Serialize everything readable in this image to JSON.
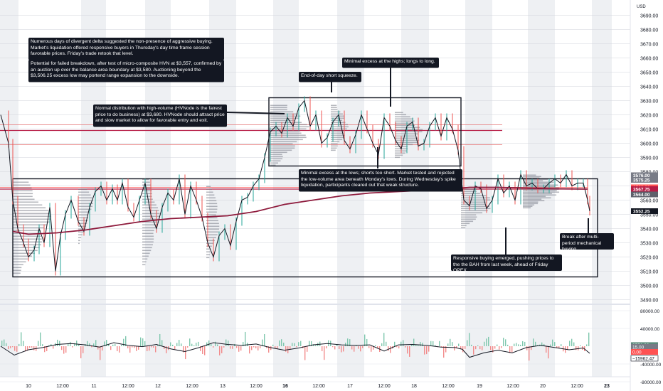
{
  "chart_data": {
    "type": "line",
    "currency_label": "USD",
    "price_axis": {
      "min": 3487,
      "max": 3700,
      "ticks": [
        3490,
        3500,
        3510,
        3520,
        3530,
        3540,
        3550,
        3560,
        3570,
        3580,
        3590,
        3600,
        3610,
        3620,
        3630,
        3640,
        3650,
        3660,
        3670,
        3680,
        3690
      ]
    },
    "date_axis": {
      "labels": [
        "10",
        "12:00",
        "11",
        "12:00",
        "12",
        "12:00",
        "13",
        "12:00",
        "16",
        "12:00",
        "17",
        "12:00",
        "18",
        "12:00",
        "19",
        "12:00",
        "20",
        "12:00",
        "23"
      ],
      "bold_labels": [
        "16",
        "23"
      ]
    },
    "price_badges": [
      {
        "value": "3576.00",
        "color": "#787b86"
      },
      {
        "value": "3575.25",
        "color": "#787b86"
      },
      {
        "value": "3569.00",
        "color": "#ff5252"
      },
      {
        "value": "3567.75",
        "color": "#b71c45"
      },
      {
        "value": "3564.00",
        "color": "#5d606b"
      },
      {
        "value": "3552.25",
        "color": "#131722"
      }
    ],
    "indicator": {
      "axis_ticks": [
        "80000.00",
        "40000.00",
        "-40000.00",
        "-80000.00"
      ],
      "badges": [
        {
          "value": "2551.00",
          "color": "#5d8a7c"
        },
        {
          "value": "15.00",
          "color": "#787b86"
        },
        {
          "value": "0.00",
          "color": "#ff5252"
        },
        {
          "value": "−15962.47",
          "color": "#ffffff"
        }
      ]
    },
    "series": [
      {
        "type": "price",
        "x": [
          1,
          12,
          18,
          25,
          33,
          40,
          48,
          55,
          62,
          70,
          78,
          85,
          92,
          100,
          110,
          118,
          126,
          134,
          142,
          150,
          158,
          165,
          172,
          180,
          188,
          196,
          204,
          212,
          220,
          228,
          236,
          244,
          252,
          260,
          268,
          276,
          284,
          292,
          300,
          308,
          316,
          324,
          332,
          340,
          348,
          356,
          364,
          372,
          380,
          388,
          396,
          404,
          412,
          420,
          428,
          436,
          444,
          452,
          460,
          468,
          476,
          484,
          492,
          500,
          508,
          516,
          524,
          532,
          540,
          548,
          556,
          564,
          572,
          580,
          588,
          596,
          604,
          612,
          620,
          628,
          636,
          644,
          652,
          660,
          668,
          676,
          684,
          692,
          700,
          708,
          716,
          724,
          732,
          740,
          748,
          756,
          764,
          772,
          780,
          788,
          796,
          804,
          812,
          820,
          826,
          829
        ],
        "y": [
          3620,
          3600,
          3560,
          3540,
          3530,
          3520,
          3525,
          3540,
          3530,
          3555,
          3510,
          3535,
          3550,
          3560,
          3545,
          3538,
          3555,
          3566,
          3570,
          3560,
          3568,
          3560,
          3572,
          3555,
          3548,
          3560,
          3572,
          3550,
          3540,
          3555,
          3565,
          3560,
          3575,
          3550,
          3570,
          3560,
          3548,
          3530,
          3520,
          3535,
          3540,
          3528,
          3545,
          3560,
          3562,
          3570,
          3575,
          3590,
          3608,
          3612,
          3607,
          3618,
          3612,
          3625,
          3630,
          3612,
          3620,
          3600,
          3604,
          3615,
          3620,
          3602,
          3596,
          3606,
          3620,
          3610,
          3600,
          3592,
          3618,
          3612,
          3602,
          3596,
          3612,
          3615,
          3598,
          3600,
          3612,
          3618,
          3605,
          3618,
          3610,
          3595,
          3560,
          3556,
          3570,
          3568,
          3554,
          3560,
          3575,
          3565,
          3570,
          3560,
          3578,
          3570,
          3572,
          3568,
          3568,
          3572,
          3575,
          3572,
          3578,
          3570,
          3572,
          3572,
          3560,
          3552.25
        ]
      },
      {
        "type": "vwap",
        "x": [
          18,
          40,
          80,
          120,
          160,
          200,
          240,
          280,
          320,
          360,
          400,
          440,
          480,
          520,
          560,
          600,
          640,
          660,
          700,
          740,
          780,
          826
        ],
        "y": [
          3538,
          3536,
          3537,
          3539,
          3542,
          3545,
          3547,
          3548,
          3549,
          3552,
          3557,
          3560,
          3563,
          3565,
          3566,
          3567,
          3568,
          3569,
          3569,
          3568.5,
          3568,
          3567.75
        ]
      },
      {
        "type": "delta",
        "x": [
          1,
          20,
          40,
          60,
          80,
          100,
          120,
          140,
          160,
          180,
          200,
          220,
          240,
          260,
          280,
          300,
          320,
          340,
          360,
          380,
          400,
          420,
          440,
          460,
          480,
          500,
          520,
          540,
          560,
          580,
          600,
          620,
          640,
          650,
          660,
          680,
          700,
          720,
          740,
          760,
          780,
          800,
          820,
          829
        ],
        "y": [
          0,
          -20000,
          -8000,
          -3000,
          4000,
          6000,
          3000,
          -2000,
          8000,
          2000,
          -1000,
          4000,
          -6000,
          -12000,
          -3000,
          8000,
          4000,
          2000,
          5000,
          -3000,
          -9000,
          -4000,
          3000,
          6000,
          3000,
          2000,
          3000,
          -11000,
          3000,
          4000,
          2000,
          -2000,
          -3000,
          -7000,
          -25000,
          -15000,
          -9000,
          -15000,
          -3000,
          2000,
          -3000,
          -8000,
          -4000,
          -15962.47
        ]
      }
    ],
    "levels": [
      {
        "y": 3613,
        "color": "#e57373"
      },
      {
        "y": 3609,
        "color": "#b71c45"
      },
      {
        "y": 3599,
        "color": "#e57373"
      },
      {
        "y": 3569,
        "color": "#ff5252"
      },
      {
        "y": 3567.75,
        "color": "#b71c45"
      }
    ],
    "annotations": [
      "Numerous days of divergent delta suggested the non-presence of aggressive buying. Market's liquidation offered responsive buyers in Thursday's day time frame session favorable prices. Friday's trade retook that level.",
      "Potential for failed breakdown, after test of micro-composite HVN at $3,557, confirmed by an auction up over the balance area boundary at $3,580. Auctioning beyond the $3,506.25 excess low may portend range expansion to the downside.",
      "Minimal excess at the highs; longs to long.",
      "End-of-day short squeeze.",
      "Normal distribution with high-volume (HVNode is the fairest price to do business) at $3,680. HVNode should attract price and slow market to allow for favorable entry and exit.",
      "Minimal excess at the lows; shorts too short. Market tested and rejected the low-volume area beneath Monday's lows. During Wednesday's spike liquidation, participants cleared out that weak structure.",
      "Break after multi-period mechanical buying.",
      "Responsive buying emerged, pushing prices to the the BAH from last week, ahead of Friday OPEX."
    ],
    "colors": {
      "up": "#26a69a",
      "down": "#ef5350",
      "vwap": "#8e1a3c",
      "session_shade": "#eef0f3",
      "box": "#131722"
    }
  }
}
